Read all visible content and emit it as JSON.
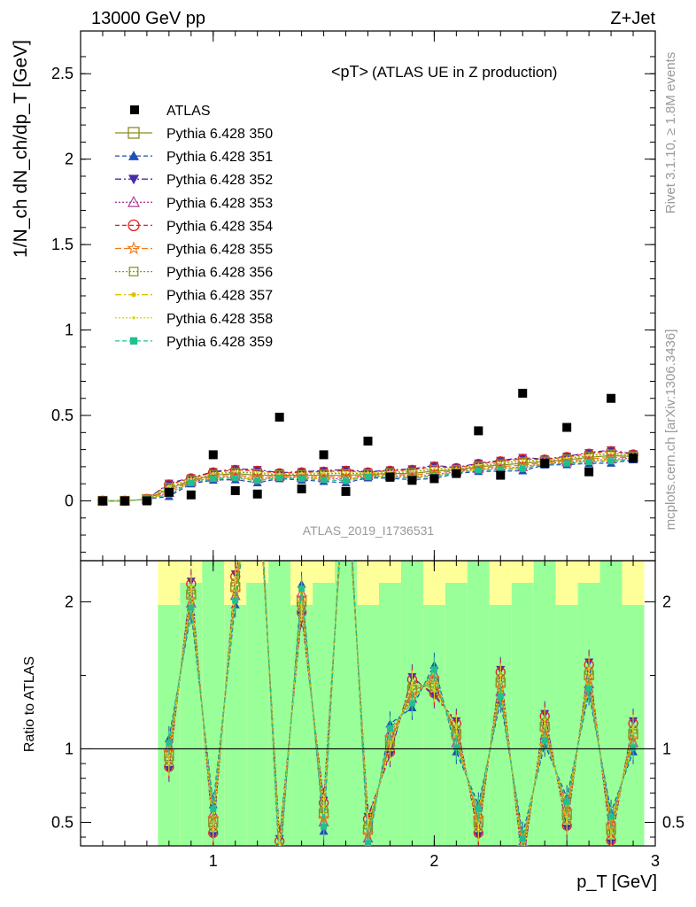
{
  "header": {
    "left": "13000 GeV pp",
    "right": "Z+Jet"
  },
  "side_text": {
    "rivet": "Rivet 3.1.10, ≥ 1.8M events",
    "mcplots": "mcplots.cern.ch [arXiv:1306.3436]"
  },
  "colors": {
    "data": "#000000",
    "band_inner": "#99ff99",
    "band_outer": "#ffff99"
  },
  "chart_data": [
    {
      "type": "scatter",
      "title": "<pT>",
      "subtitle": "(ATLAS UE in Z production)",
      "analysis_label": "ATLAS_2019_I1736531",
      "ylabel": "1/N_ch dN_ch/dp_T [GeV]",
      "xlabel": "p_T [GeV]",
      "xlim": [
        0.4,
        3.0
      ],
      "ylim": [
        -0.35,
        2.75
      ],
      "x_ticks": [
        {
          "v": 1,
          "label": "1"
        },
        {
          "v": 2,
          "label": "2"
        },
        {
          "v": 3,
          "label": "3"
        }
      ],
      "y_ticks": [
        {
          "v": 0,
          "label": "0"
        },
        {
          "v": 0.5,
          "label": "0.5"
        },
        {
          "v": 1,
          "label": "1"
        },
        {
          "v": 1.5,
          "label": "1.5"
        },
        {
          "v": 2,
          "label": "2"
        },
        {
          "v": 2.5,
          "label": "2.5"
        }
      ],
      "legend_position": "top-left",
      "data": {
        "name": "ATLAS",
        "x": [
          0.5,
          0.6,
          0.7,
          0.8,
          0.9,
          1.0,
          1.1,
          1.2,
          1.3,
          1.4,
          1.5,
          1.6,
          1.7,
          1.8,
          1.9,
          2.0,
          2.1,
          2.2,
          2.3,
          2.4,
          2.5,
          2.6,
          2.7,
          2.8,
          2.9
        ],
        "y": [
          0.0,
          0.0,
          0.0,
          0.05,
          0.035,
          0.27,
          0.06,
          0.04,
          0.49,
          0.07,
          0.27,
          0.055,
          0.35,
          0.14,
          0.12,
          0.13,
          0.16,
          0.41,
          0.15,
          0.63,
          0.22,
          0.43,
          0.17,
          0.6,
          0.25
        ]
      },
      "series": [
        {
          "name": "Pythia 6.428 350",
          "color": "#8c8c1f",
          "marker": "square-open",
          "dash": "",
          "offset": 0.0
        },
        {
          "name": "Pythia 6.428 351",
          "color": "#1f4fb4",
          "marker": "triangle-up",
          "dash": "5,3",
          "offset": -0.02
        },
        {
          "name": "Pythia 6.428 352",
          "color": "#4b2aa8",
          "marker": "triangle-down",
          "dash": "7,3,2,3",
          "offset": 0.015
        },
        {
          "name": "Pythia 6.428 353",
          "color": "#b43c96",
          "marker": "triangle-open",
          "dash": "2,2",
          "offset": -0.01
        },
        {
          "name": "Pythia 6.428 354",
          "color": "#e02020",
          "marker": "circle-open",
          "dash": "5,3",
          "offset": 0.012
        },
        {
          "name": "Pythia 6.428 355",
          "color": "#f07818",
          "marker": "star-open",
          "dash": "7,3",
          "offset": -0.005
        },
        {
          "name": "Pythia 6.428 356",
          "color": "#8a9a20",
          "marker": "square-open-small",
          "dash": "2,2",
          "offset": 0.005
        },
        {
          "name": "Pythia 6.428 357",
          "color": "#e0c000",
          "marker": "dot",
          "dash": "7,3,2,3",
          "offset": -0.012
        },
        {
          "name": "Pythia 6.428 358",
          "color": "#d8d820",
          "marker": "dot-small",
          "dash": "2,2",
          "offset": 0.008
        },
        {
          "name": "Pythia 6.428 359",
          "color": "#20c090",
          "marker": "square-filled",
          "dash": "5,3",
          "offset": -0.015
        }
      ],
      "mc_x": [
        0.5,
        0.6,
        0.7,
        0.8,
        0.9,
        1.0,
        1.1,
        1.2,
        1.3,
        1.4,
        1.5,
        1.6,
        1.7,
        1.8,
        1.9,
        2.0,
        2.1,
        2.2,
        2.3,
        2.4,
        2.5,
        2.6,
        2.7,
        2.8,
        2.9
      ],
      "mc_y_typical": [
        0.0,
        0.0,
        0.01,
        0.07,
        0.12,
        0.15,
        0.16,
        0.15,
        0.15,
        0.15,
        0.15,
        0.15,
        0.155,
        0.16,
        0.16,
        0.175,
        0.18,
        0.2,
        0.21,
        0.22,
        0.23,
        0.24,
        0.255,
        0.265,
        0.26
      ]
    },
    {
      "type": "line",
      "ylabel": "Ratio to ATLAS",
      "ylim": [
        0.34,
        2.28
      ],
      "y_ticks": [
        {
          "v": 0.5,
          "label": "0.5"
        },
        {
          "v": 1,
          "label": "1"
        },
        {
          "v": 2,
          "label": "2"
        }
      ],
      "reference_line": 1,
      "x": [
        0.8,
        0.9,
        1.0,
        1.1,
        1.2,
        1.3,
        1.4,
        1.5,
        1.6,
        1.7,
        1.8,
        1.9,
        2.0,
        2.1,
        2.2,
        2.3,
        2.4,
        2.5,
        2.6,
        2.7,
        2.8,
        2.9
      ],
      "ratio_typical": [
        0.95,
        2.05,
        0.5,
        2.1,
        3.0,
        0.3,
        2.0,
        0.56,
        3.0,
        0.45,
        1.05,
        1.4,
        1.45,
        1.1,
        0.5,
        1.45,
        0.3,
        1.15,
        0.55,
        1.5,
        0.45,
        1.1
      ]
    }
  ]
}
